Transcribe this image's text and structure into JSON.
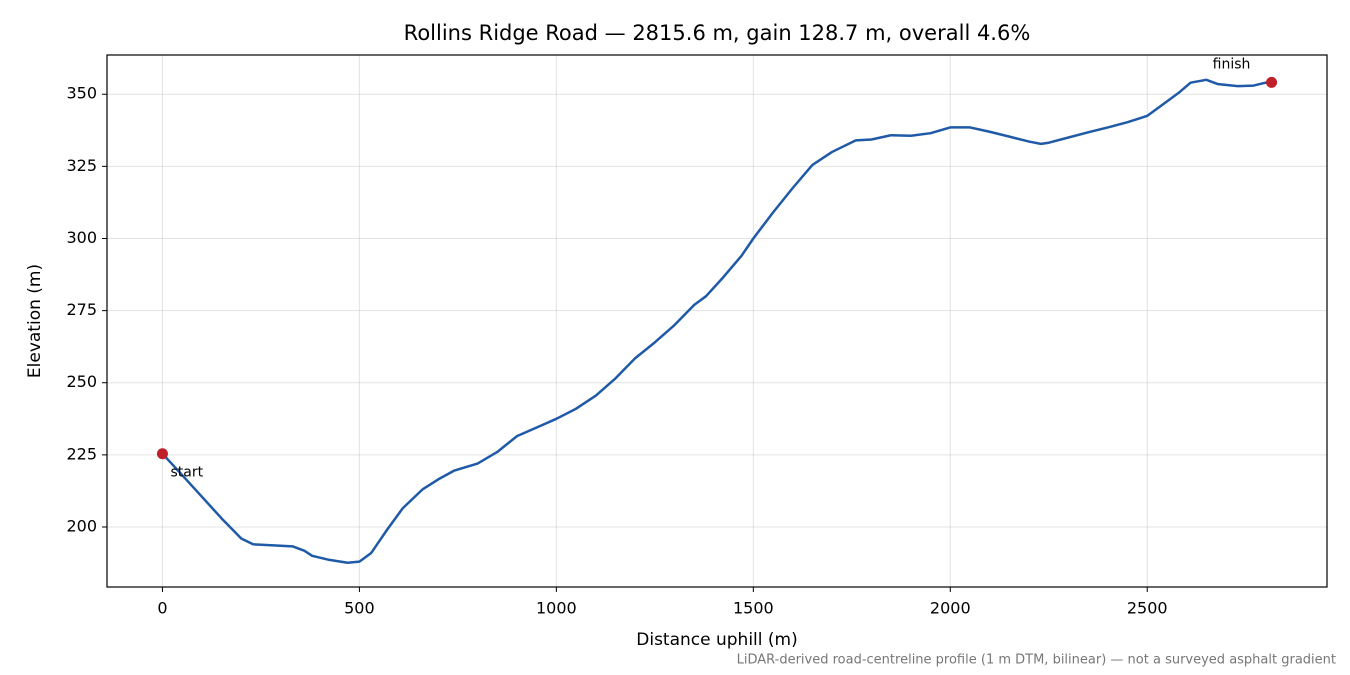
{
  "chart_data": {
    "type": "line",
    "title": "Rollins Ridge Road — 2815.6 m, gain 128.7 m, overall 4.6%",
    "x_label": "Distance uphill (m)",
    "y_label": "Elevation (m)",
    "footnote": "LiDAR-derived road-centreline profile (1 m DTM, bilinear) — not a surveyed asphalt gradient",
    "xlim": [
      -140.78,
      2956.38
    ],
    "ylim": [
      179.2,
      363.6
    ],
    "xticks": [
      0,
      500,
      1000,
      1500,
      2000,
      2500
    ],
    "yticks": [
      200,
      225,
      250,
      275,
      300,
      325,
      350
    ],
    "grid": true,
    "series": [
      {
        "color": "#1f5aa8",
        "x": [
          0,
          50,
          100,
          150,
          200,
          230,
          300,
          330,
          360,
          380,
          420,
          470,
          500,
          530,
          570,
          610,
          660,
          700,
          740,
          800,
          850,
          900,
          950,
          1000,
          1050,
          1100,
          1150,
          1200,
          1250,
          1300,
          1350,
          1380,
          1420,
          1470,
          1500,
          1550,
          1600,
          1650,
          1700,
          1760,
          1800,
          1850,
          1900,
          1950,
          2000,
          2050,
          2100,
          2150,
          2200,
          2230,
          2250,
          2300,
          2350,
          2400,
          2450,
          2500,
          2530,
          2580,
          2610,
          2650,
          2680,
          2730,
          2770,
          2800,
          2815.6
        ],
        "values": [
          225.4,
          218,
          210.5,
          203,
          196,
          194,
          193.5,
          193.3,
          191.8,
          190,
          188.7,
          187.6,
          188,
          191,
          199,
          206.5,
          213,
          216.5,
          219.5,
          222,
          226,
          231.5,
          234.5,
          237.5,
          241,
          245.5,
          251.5,
          258.5,
          264,
          270,
          277,
          280,
          286,
          294,
          300,
          309,
          317.5,
          325.5,
          330,
          334,
          334.3,
          335.8,
          335.6,
          336.5,
          338.5,
          338.5,
          337,
          335.3,
          333.6,
          332.8,
          333.2,
          335,
          336.8,
          338.5,
          340.3,
          342.5,
          345.5,
          350.5,
          354,
          355,
          353.5,
          352.8,
          353,
          354,
          354.1
        ]
      }
    ],
    "annotations": [
      {
        "text": "start",
        "x": 0,
        "y": 225.4,
        "color": "#c0202a"
      },
      {
        "text": "finish",
        "x": 2815.6,
        "y": 354.1,
        "color": "#c0202a"
      }
    ]
  }
}
